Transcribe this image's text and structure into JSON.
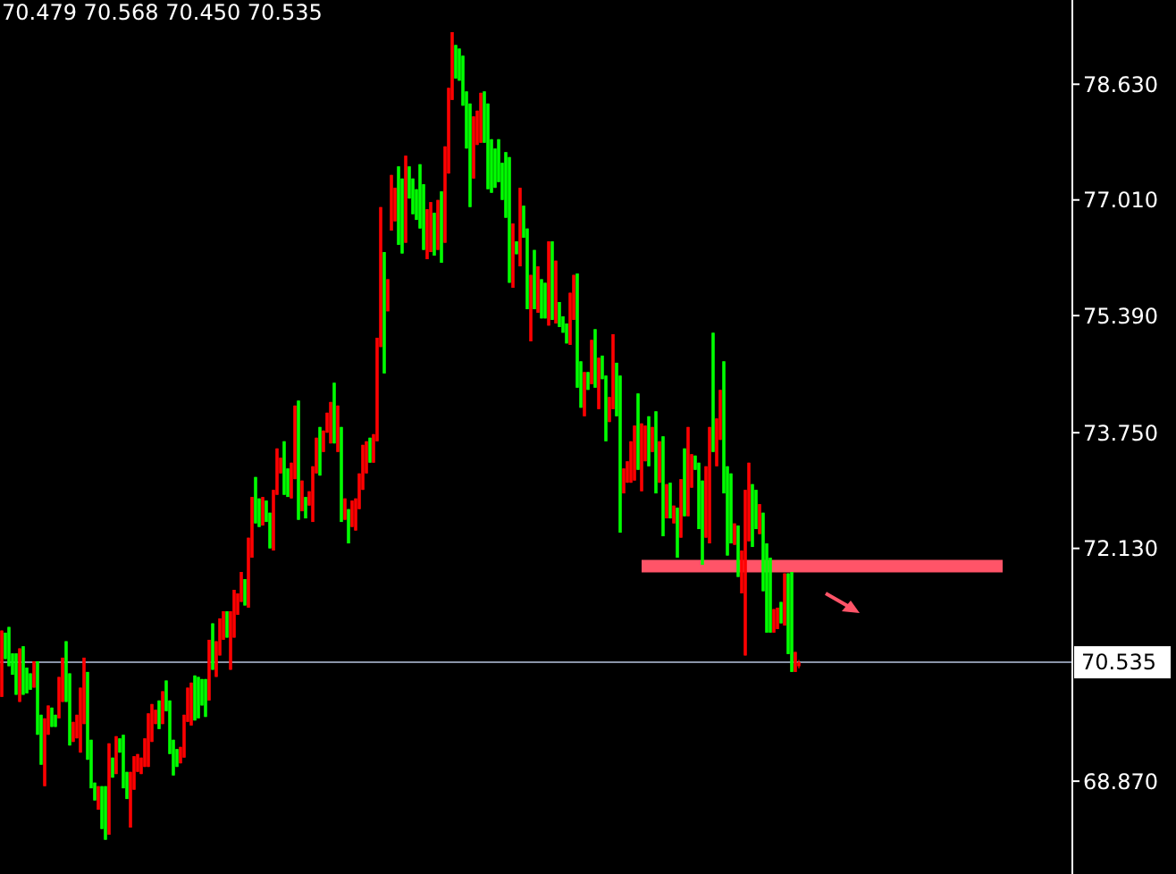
{
  "chart_data": {
    "type": "candlestick",
    "title": "70.479 70.568 70.450 70.535",
    "categories": [
      null,
      null,
      null,
      null,
      null,
      null,
      null,
      null,
      null,
      null,
      null,
      null,
      null,
      null,
      null,
      null,
      null,
      null,
      null,
      null,
      null,
      null,
      null,
      null,
      null,
      null,
      null,
      null,
      null,
      null,
      null,
      null,
      null,
      null,
      null,
      null,
      null,
      null,
      null,
      null,
      null,
      null,
      null,
      null,
      null,
      null,
      null,
      null,
      null,
      null,
      null,
      null,
      null,
      null,
      null,
      null,
      null,
      null,
      null,
      null,
      null,
      null,
      null,
      null,
      null,
      null,
      null,
      null,
      null,
      null,
      null,
      null,
      null,
      null,
      null,
      null,
      null,
      null,
      null,
      null,
      null,
      null,
      null,
      null,
      null,
      null,
      null,
      null,
      null,
      null,
      null,
      null,
      null,
      null,
      null,
      null,
      null,
      null,
      null,
      null,
      null,
      null,
      null,
      null,
      null,
      null,
      null,
      null,
      null,
      null,
      null,
      null,
      null,
      null,
      null,
      null,
      null,
      null,
      null,
      null,
      null,
      null,
      null,
      null,
      null,
      null,
      null,
      null,
      null,
      null,
      null,
      null,
      null,
      null,
      null,
      null,
      null,
      null,
      null,
      null,
      null,
      null,
      null,
      null,
      null,
      null,
      null,
      null,
      null,
      null,
      null,
      null,
      null,
      null,
      null,
      null,
      null,
      null,
      null,
      null,
      null,
      null,
      null,
      null,
      null,
      null,
      null,
      null,
      null,
      null,
      null,
      null,
      null,
      null,
      null,
      null,
      null,
      null,
      null,
      null,
      null,
      null,
      null,
      null,
      null,
      null,
      null,
      null,
      null,
      null,
      null,
      null,
      null,
      null,
      null,
      null,
      null,
      null,
      null,
      null,
      null,
      null,
      null,
      null,
      null,
      null,
      null,
      null,
      null,
      null,
      null,
      null,
      null,
      null,
      null,
      null,
      null,
      null,
      null,
      null,
      null,
      null,
      null,
      null,
      null,
      null,
      null,
      null,
      null,
      null,
      null,
      null,
      null,
      null,
      null,
      null,
      null,
      null,
      null,
      null,
      null,
      null,
      null,
      null,
      null,
      null,
      null,
      null,
      null,
      null,
      null,
      null,
      null,
      null,
      null,
      null,
      null,
      null,
      null,
      null,
      null,
      null,
      null,
      null,
      null,
      null,
      null,
      null,
      null,
      null,
      null,
      null,
      null,
      null,
      null,
      null,
      null,
      null,
      null,
      null,
      null,
      null,
      null,
      null,
      null,
      null,
      null,
      null,
      null,
      null,
      null,
      null,
      null,
      null,
      null,
      null,
      null,
      null,
      null,
      null
    ],
    "ohlc": [
      [
        70.05,
        70.98,
        70.05,
        70.98
      ],
      [
        70.95,
        70.95,
        70.58,
        70.58
      ],
      [
        71.03,
        71.03,
        70.48,
        70.48
      ],
      [
        70.66,
        70.66,
        70.36,
        70.36
      ],
      [
        70.66,
        70.66,
        70.08,
        70.08
      ],
      [
        69.98,
        70.73,
        69.98,
        70.73
      ],
      [
        70.76,
        70.76,
        70.08,
        70.08
      ],
      [
        70.46,
        70.46,
        70.1,
        70.1
      ],
      [
        70.38,
        70.38,
        70.15,
        70.15
      ],
      [
        70.18,
        70.55,
        70.18,
        70.55
      ],
      [
        70.55,
        70.55,
        69.52,
        69.52
      ],
      [
        69.8,
        69.8,
        69.1,
        69.1
      ],
      [
        68.8,
        69.75,
        68.8,
        69.75
      ],
      [
        69.52,
        69.93,
        69.52,
        69.93
      ],
      [
        69.9,
        69.9,
        69.63,
        69.63
      ],
      [
        69.8,
        69.8,
        69.63,
        69.63
      ],
      [
        69.75,
        70.33,
        69.75,
        70.33
      ],
      [
        69.98,
        70.6,
        69.98,
        70.6
      ],
      [
        70.83,
        70.83,
        69.98,
        69.98
      ],
      [
        70.38,
        70.38,
        69.37,
        69.37
      ],
      [
        69.42,
        69.7,
        69.42,
        69.7
      ],
      [
        69.47,
        69.8,
        69.47,
        69.8
      ],
      [
        69.27,
        70.18,
        69.27,
        70.18
      ],
      [
        69.67,
        70.6,
        69.67,
        70.6
      ],
      [
        70.4,
        70.4,
        69.17,
        69.17
      ],
      [
        69.45,
        69.45,
        68.77,
        68.77
      ],
      [
        68.85,
        68.85,
        68.6,
        68.6
      ],
      [
        68.47,
        68.8,
        68.47,
        68.8
      ],
      [
        68.8,
        68.8,
        68.2,
        68.2
      ],
      [
        68.8,
        68.8,
        68.05,
        68.05
      ],
      [
        68.12,
        69.4,
        68.12,
        69.4
      ],
      [
        69.2,
        69.2,
        68.92,
        68.92
      ],
      [
        68.97,
        69.5,
        68.97,
        69.5
      ],
      [
        69.47,
        69.47,
        69.27,
        69.27
      ],
      [
        69.52,
        69.52,
        68.77,
        68.77
      ],
      [
        69.0,
        69.0,
        68.62,
        68.62
      ],
      [
        68.22,
        69.0,
        68.22,
        69.0
      ],
      [
        68.75,
        69.22,
        68.75,
        69.22
      ],
      [
        69.0,
        69.25,
        69.0,
        69.25
      ],
      [
        68.97,
        69.2,
        68.97,
        69.2
      ],
      [
        69.07,
        69.47,
        69.07,
        69.47
      ],
      [
        69.07,
        69.82,
        69.07,
        69.82
      ],
      [
        69.42,
        69.95,
        69.42,
        69.95
      ],
      [
        69.67,
        69.87,
        69.67,
        69.87
      ],
      [
        70.0,
        70.0,
        69.6,
        69.6
      ],
      [
        69.67,
        70.13,
        69.67,
        70.13
      ],
      [
        70.28,
        70.28,
        69.85,
        69.85
      ],
      [
        70.0,
        70.0,
        69.25,
        69.25
      ],
      [
        69.45,
        69.45,
        68.95,
        68.95
      ],
      [
        69.32,
        69.32,
        69.07,
        69.07
      ],
      [
        69.12,
        69.35,
        69.12,
        69.35
      ],
      [
        69.2,
        69.8,
        69.2,
        69.8
      ],
      [
        69.7,
        70.18,
        69.7,
        70.18
      ],
      [
        69.65,
        70.25,
        69.65,
        70.25
      ],
      [
        70.35,
        70.35,
        69.72,
        69.72
      ],
      [
        70.33,
        70.33,
        69.75,
        69.75
      ],
      [
        70.3,
        70.3,
        69.93,
        69.93
      ],
      [
        70.3,
        70.3,
        69.77,
        69.77
      ],
      [
        70.0,
        70.85,
        70.0,
        70.85
      ],
      [
        71.08,
        71.08,
        70.43,
        70.43
      ],
      [
        70.33,
        70.83,
        70.33,
        70.83
      ],
      [
        70.63,
        71.15,
        70.63,
        71.15
      ],
      [
        70.85,
        71.25,
        70.85,
        71.25
      ],
      [
        71.25,
        71.25,
        70.88,
        70.88
      ],
      [
        70.43,
        71.25,
        70.43,
        71.25
      ],
      [
        70.88,
        71.55,
        70.88,
        71.55
      ],
      [
        71.2,
        71.5,
        71.2,
        71.5
      ],
      [
        71.38,
        71.8,
        71.38,
        71.8
      ],
      [
        71.7,
        71.7,
        71.33,
        71.33
      ],
      [
        71.3,
        72.28,
        71.3,
        72.28
      ],
      [
        72.0,
        72.85,
        72.0,
        72.85
      ],
      [
        73.13,
        73.13,
        72.48,
        72.48
      ],
      [
        72.83,
        72.83,
        72.43,
        72.43
      ],
      [
        72.45,
        72.85,
        72.45,
        72.85
      ],
      [
        72.8,
        72.8,
        72.5,
        72.5
      ],
      [
        72.63,
        72.63,
        72.13,
        72.13
      ],
      [
        72.1,
        72.95,
        72.1,
        72.95
      ],
      [
        72.88,
        73.53,
        72.88,
        73.53
      ],
      [
        73.18,
        73.4,
        73.18,
        73.4
      ],
      [
        73.63,
        73.63,
        72.88,
        72.88
      ],
      [
        73.25,
        73.25,
        72.85,
        72.85
      ],
      [
        72.83,
        73.33,
        72.83,
        73.33
      ],
      [
        73.1,
        74.13,
        73.1,
        74.13
      ],
      [
        74.2,
        74.2,
        72.53,
        72.53
      ],
      [
        72.65,
        73.08,
        72.65,
        73.08
      ],
      [
        72.85,
        72.85,
        72.55,
        72.55
      ],
      [
        72.73,
        72.93,
        72.73,
        72.93
      ],
      [
        72.5,
        73.28,
        72.5,
        73.28
      ],
      [
        73.18,
        73.68,
        73.18,
        73.68
      ],
      [
        73.83,
        73.83,
        73.15,
        73.15
      ],
      [
        73.48,
        73.78,
        73.48,
        73.78
      ],
      [
        73.75,
        74.03,
        73.75,
        74.03
      ],
      [
        73.6,
        74.18,
        73.6,
        74.18
      ],
      [
        74.45,
        74.45,
        73.6,
        73.6
      ],
      [
        73.48,
        74.13,
        73.48,
        74.13
      ],
      [
        73.83,
        73.83,
        72.5,
        72.5
      ],
      [
        72.53,
        72.83,
        72.53,
        72.83
      ],
      [
        72.68,
        72.68,
        72.2,
        72.2
      ],
      [
        72.43,
        72.8,
        72.43,
        72.8
      ],
      [
        72.38,
        72.83,
        72.38,
        72.83
      ],
      [
        72.68,
        73.18,
        72.68,
        73.18
      ],
      [
        72.95,
        73.58,
        72.95,
        73.58
      ],
      [
        73.18,
        73.63,
        73.18,
        73.63
      ],
      [
        73.68,
        73.68,
        73.33,
        73.33
      ],
      [
        73.33,
        73.73,
        73.33,
        73.73
      ],
      [
        73.63,
        75.08,
        73.63,
        75.08
      ],
      [
        74.95,
        76.91,
        74.95,
        76.91
      ],
      [
        76.28,
        76.28,
        74.58,
        74.58
      ],
      [
        75.45,
        75.9,
        75.45,
        75.9
      ],
      [
        76.58,
        77.36,
        76.58,
        77.36
      ],
      [
        76.71,
        77.18,
        76.71,
        77.18
      ],
      [
        77.48,
        77.48,
        76.38,
        76.38
      ],
      [
        77.31,
        77.31,
        76.26,
        76.26
      ],
      [
        76.41,
        77.63,
        76.41,
        77.63
      ],
      [
        77.48,
        77.48,
        77.03,
        77.03
      ],
      [
        77.31,
        77.31,
        76.81,
        76.81
      ],
      [
        77.16,
        77.16,
        76.73,
        76.73
      ],
      [
        77.51,
        77.51,
        76.61,
        76.61
      ],
      [
        77.23,
        77.23,
        76.31,
        76.31
      ],
      [
        76.18,
        76.88,
        76.18,
        76.88
      ],
      [
        76.28,
        76.98,
        76.28,
        76.98
      ],
      [
        76.83,
        76.83,
        76.23,
        76.23
      ],
      [
        76.31,
        77.01,
        76.31,
        77.01
      ],
      [
        77.13,
        77.13,
        76.13,
        76.13
      ],
      [
        76.41,
        77.76,
        76.41,
        77.76
      ],
      [
        77.38,
        78.58,
        77.38,
        78.58
      ],
      [
        78.41,
        79.36,
        78.41,
        79.36
      ],
      [
        79.18,
        79.18,
        78.71,
        78.71
      ],
      [
        79.13,
        79.13,
        78.68,
        78.68
      ],
      [
        79.03,
        79.03,
        78.33,
        78.33
      ],
      [
        78.53,
        78.53,
        77.73,
        77.73
      ],
      [
        78.36,
        78.36,
        76.91,
        76.91
      ],
      [
        77.31,
        78.18,
        77.31,
        78.18
      ],
      [
        77.78,
        78.26,
        77.78,
        78.26
      ],
      [
        77.81,
        78.51,
        77.81,
        78.51
      ],
      [
        78.53,
        78.53,
        77.81,
        77.81
      ],
      [
        78.36,
        78.36,
        77.16,
        77.16
      ],
      [
        77.86,
        77.86,
        77.11,
        77.11
      ],
      [
        77.73,
        77.73,
        77.18,
        77.18
      ],
      [
        77.86,
        77.86,
        77.26,
        77.26
      ],
      [
        77.53,
        77.53,
        77.01,
        77.01
      ],
      [
        77.68,
        77.68,
        76.76,
        76.76
      ],
      [
        77.61,
        77.61,
        75.85,
        75.85
      ],
      [
        75.78,
        76.68,
        75.78,
        76.68
      ],
      [
        76.43,
        76.43,
        76.25,
        76.25
      ],
      [
        76.08,
        77.18,
        76.08,
        77.18
      ],
      [
        76.93,
        76.93,
        76.48,
        76.48
      ],
      [
        76.61,
        76.61,
        75.48,
        75.48
      ],
      [
        75.03,
        75.96,
        75.03,
        75.96
      ],
      [
        76.31,
        76.31,
        75.48,
        75.48
      ],
      [
        75.43,
        76.08,
        75.43,
        76.08
      ],
      [
        75.9,
        75.9,
        75.35,
        75.35
      ],
      [
        75.85,
        75.85,
        75.35,
        75.35
      ],
      [
        75.25,
        76.43,
        75.25,
        76.43
      ],
      [
        76.43,
        76.43,
        75.33,
        75.33
      ],
      [
        75.28,
        76.16,
        75.28,
        76.16
      ],
      [
        75.58,
        75.58,
        75.23,
        75.23
      ],
      [
        75.38,
        75.38,
        75.15,
        75.15
      ],
      [
        75.28,
        75.28,
        75.0,
        75.0
      ],
      [
        74.98,
        75.71,
        74.98,
        75.71
      ],
      [
        75.33,
        75.96,
        75.33,
        75.96
      ],
      [
        75.98,
        75.98,
        74.38,
        74.38
      ],
      [
        74.75,
        74.75,
        74.1,
        74.1
      ],
      [
        73.98,
        74.6,
        73.98,
        74.6
      ],
      [
        74.6,
        74.6,
        74.35,
        74.35
      ],
      [
        74.43,
        75.05,
        74.43,
        75.05
      ],
      [
        75.2,
        75.2,
        74.38,
        74.38
      ],
      [
        74.08,
        74.8,
        74.08,
        74.8
      ],
      [
        74.83,
        74.83,
        74.5,
        74.5
      ],
      [
        74.55,
        74.55,
        73.63,
        73.63
      ],
      [
        73.9,
        74.25,
        73.9,
        74.25
      ],
      [
        74.08,
        75.13,
        74.08,
        75.13
      ],
      [
        74.73,
        74.73,
        73.98,
        73.98
      ],
      [
        74.55,
        74.55,
        72.35,
        72.35
      ],
      [
        72.9,
        73.25,
        72.9,
        73.25
      ],
      [
        73.05,
        73.35,
        73.05,
        73.35
      ],
      [
        73.05,
        73.63,
        73.05,
        73.63
      ],
      [
        73.08,
        73.85,
        73.08,
        73.85
      ],
      [
        74.3,
        74.3,
        73.23,
        73.23
      ],
      [
        72.93,
        73.88,
        72.93,
        73.88
      ],
      [
        73.35,
        73.85,
        73.35,
        73.85
      ],
      [
        73.98,
        73.98,
        73.28,
        73.28
      ],
      [
        73.48,
        73.83,
        73.48,
        73.83
      ],
      [
        74.05,
        74.05,
        72.9,
        72.9
      ],
      [
        73.05,
        73.63,
        73.05,
        73.63
      ],
      [
        73.7,
        73.7,
        72.3,
        72.3
      ],
      [
        72.55,
        73.03,
        72.55,
        73.03
      ],
      [
        73.05,
        73.05,
        72.55,
        72.55
      ],
      [
        72.48,
        72.73,
        72.48,
        72.73
      ],
      [
        72.7,
        72.7,
        72.0,
        72.0
      ],
      [
        72.28,
        73.1,
        72.28,
        73.1
      ],
      [
        73.53,
        73.53,
        72.58,
        72.58
      ],
      [
        72.58,
        73.83,
        72.58,
        73.83
      ],
      [
        72.98,
        73.45,
        72.98,
        73.45
      ],
      [
        73.43,
        73.43,
        73.23,
        73.23
      ],
      [
        73.33,
        73.33,
        72.4,
        72.4
      ],
      [
        73.08,
        73.08,
        71.9,
        71.9
      ],
      [
        72.28,
        73.28,
        72.28,
        73.28
      ],
      [
        72.2,
        73.83,
        72.2,
        73.83
      ],
      [
        75.15,
        75.15,
        73.48,
        73.48
      ],
      [
        73.28,
        73.95,
        73.28,
        73.95
      ],
      [
        73.65,
        74.35,
        73.65,
        74.35
      ],
      [
        74.75,
        74.75,
        72.9,
        72.9
      ],
      [
        73.28,
        73.28,
        72.03,
        72.03
      ],
      [
        73.18,
        73.18,
        72.2,
        72.2
      ],
      [
        72.18,
        72.48,
        72.18,
        72.48
      ],
      [
        72.45,
        72.45,
        71.73,
        71.73
      ],
      [
        71.5,
        72.1,
        71.5,
        72.1
      ],
      [
        70.63,
        72.95,
        70.63,
        72.95
      ],
      [
        72.23,
        73.33,
        72.23,
        73.33
      ],
      [
        73.03,
        73.03,
        72.15,
        72.15
      ],
      [
        72.95,
        72.95,
        72.4,
        72.4
      ],
      [
        72.33,
        72.75,
        72.33,
        72.75
      ],
      [
        72.63,
        72.63,
        71.53,
        71.53
      ],
      [
        72.2,
        72.2,
        70.95,
        70.95
      ],
      [
        72.0,
        72.0,
        70.95,
        70.95
      ],
      [
        70.95,
        71.28,
        70.95,
        71.28
      ],
      [
        71.0,
        71.3,
        71.0,
        71.3
      ],
      [
        71.38,
        71.38,
        71.08,
        71.08
      ],
      [
        71.05,
        71.78,
        71.05,
        71.78
      ],
      [
        71.78,
        71.78,
        70.65,
        70.65
      ],
      [
        71.8,
        71.8,
        70.4,
        70.4
      ],
      [
        70.4,
        70.68,
        70.4,
        70.68
      ],
      [
        70.479,
        70.568,
        70.45,
        70.535
      ],
      null,
      null,
      null,
      null,
      null,
      null,
      null,
      null,
      null,
      null,
      null,
      null,
      null,
      null,
      null,
      null,
      null,
      null,
      null,
      null,
      null,
      null,
      null,
      null,
      null,
      null,
      null,
      null,
      null,
      null,
      null,
      null,
      null,
      null,
      null,
      null,
      null,
      null,
      null,
      null,
      null,
      null,
      null,
      null,
      null,
      null,
      null,
      null,
      null,
      null,
      null,
      null,
      null,
      null,
      null,
      null,
      null,
      null,
      null,
      null,
      null,
      null,
      null,
      null,
      null,
      null,
      null,
      null,
      null,
      null,
      null,
      null,
      null,
      null,
      null,
      null
    ],
    "colors": [
      "#ff0000",
      "#00ff00",
      "#00ff00",
      "#00ff00",
      "#00ff00",
      "#ff0000",
      "#00ff00",
      "#00ff00",
      "#00ff00",
      "#ff0000",
      "#00ff00",
      "#00ff00",
      "#ff0000",
      "#ff0000",
      "#00ff00",
      "#00ff00",
      "#ff0000",
      "#ff0000",
      "#00ff00",
      "#00ff00",
      "#ff0000",
      "#ff0000",
      "#ff0000",
      "#ff0000",
      "#00ff00",
      "#00ff00",
      "#00ff00",
      "#ff0000",
      "#00ff00",
      "#00ff00",
      "#ff0000",
      "#00ff00",
      "#ff0000",
      "#00ff00",
      "#00ff00",
      "#00ff00",
      "#ff0000",
      "#ff0000",
      "#ff0000",
      "#ff0000",
      "#ff0000",
      "#ff0000",
      "#ff0000",
      "#ff0000",
      "#00ff00",
      "#ff0000",
      "#00ff00",
      "#00ff00",
      "#00ff00",
      "#00ff00",
      "#ff0000",
      "#ff0000",
      "#ff0000",
      "#ff0000",
      "#00ff00",
      "#00ff00",
      "#00ff00",
      "#00ff00",
      "#ff0000",
      "#00ff00",
      "#ff0000",
      "#ff0000",
      "#ff0000",
      "#00ff00",
      "#ff0000",
      "#ff0000",
      "#ff0000",
      "#ff0000",
      "#00ff00",
      "#ff0000",
      "#ff0000",
      "#00ff00",
      "#00ff00",
      "#ff0000",
      "#00ff00",
      "#00ff00",
      "#ff0000",
      "#ff0000",
      "#ff0000",
      "#00ff00",
      "#00ff00",
      "#ff0000",
      "#ff0000",
      "#00ff00",
      "#ff0000",
      "#00ff00",
      "#ff0000",
      "#ff0000",
      "#ff0000",
      "#00ff00",
      "#ff0000",
      "#ff0000",
      "#ff0000",
      "#00ff00",
      "#ff0000",
      "#00ff00",
      "#ff0000",
      "#00ff00",
      "#ff0000",
      "#ff0000",
      "#ff0000",
      "#ff0000",
      "#ff0000",
      "#00ff00",
      "#ff0000",
      "#ff0000",
      "#ff0000",
      "#00ff00",
      "#ff0000",
      "#ff0000",
      "#ff0000",
      "#00ff00",
      "#00ff00",
      "#ff0000",
      "#00ff00",
      "#00ff00",
      "#00ff00",
      "#00ff00",
      "#00ff00",
      "#ff0000",
      "#ff0000",
      "#00ff00",
      "#ff0000",
      "#00ff00",
      "#ff0000",
      "#ff0000",
      "#ff0000",
      "#00ff00",
      "#00ff00",
      "#00ff00",
      "#00ff00",
      "#00ff00",
      "#ff0000",
      "#ff0000",
      "#ff0000",
      "#00ff00",
      "#00ff00",
      "#00ff00",
      "#00ff00",
      "#00ff00",
      "#00ff00",
      "#00ff00",
      "#00ff00",
      "#ff0000",
      "#00ff00",
      "#ff0000",
      "#00ff00",
      "#00ff00",
      "#ff0000",
      "#00ff00",
      "#ff0000",
      "#00ff00",
      "#00ff00",
      "#ff0000",
      "#00ff00",
      "#ff0000",
      "#00ff00",
      "#00ff00",
      "#00ff00",
      "#ff0000",
      "#ff0000",
      "#00ff00",
      "#00ff00",
      "#ff0000",
      "#00ff00",
      "#ff0000",
      "#00ff00",
      "#ff0000",
      "#00ff00",
      "#00ff00",
      "#ff0000",
      "#ff0000",
      "#00ff00",
      "#00ff00",
      "#ff0000",
      "#ff0000",
      "#ff0000",
      "#ff0000",
      "#00ff00",
      "#ff0000",
      "#ff0000",
      "#00ff00",
      "#ff0000",
      "#00ff00",
      "#ff0000",
      "#00ff00",
      "#ff0000",
      "#00ff00",
      "#ff0000",
      "#00ff00",
      "#ff0000",
      "#00ff00",
      "#ff0000",
      "#ff0000",
      "#00ff00",
      "#00ff00",
      "#00ff00",
      "#ff0000",
      "#ff0000",
      "#00ff00",
      "#ff0000",
      "#ff0000",
      "#00ff00",
      "#00ff00",
      "#00ff00",
      "#ff0000",
      "#00ff00",
      "#ff0000",
      "#ff0000",
      "#ff0000",
      "#00ff00",
      "#00ff00",
      "#ff0000",
      "#00ff00",
      "#00ff00",
      "#00ff00",
      "#ff0000",
      "#ff0000",
      "#00ff00",
      "#ff0000",
      "#00ff00",
      "#00ff00",
      "#ff0000",
      "#ff0000",
      null,
      null,
      null,
      null,
      null,
      null,
      null,
      null,
      null,
      null,
      null,
      null,
      null,
      null,
      null,
      null,
      null,
      null,
      null,
      null,
      null,
      null,
      null,
      null,
      null,
      null,
      null,
      null,
      null,
      null,
      null,
      null,
      null,
      null,
      null,
      null,
      null,
      null,
      null,
      null,
      null,
      null,
      null,
      null,
      null,
      null,
      null,
      null,
      null,
      null,
      null,
      null,
      null,
      null,
      null,
      null,
      null,
      null,
      null,
      null,
      null,
      null,
      null,
      null,
      null,
      null,
      null,
      null,
      null,
      null,
      null,
      null,
      null,
      null,
      null,
      null
    ],
    "series": [
      {
        "type": "line",
        "color": "#ff5468",
        "values": [
          null,
          null,
          null,
          null,
          null,
          null,
          null,
          null,
          null,
          null,
          null,
          null,
          null,
          null,
          null,
          null,
          null,
          null,
          null,
          null,
          null,
          null,
          null,
          null,
          null,
          null,
          null,
          null,
          null,
          null,
          null,
          null,
          null,
          null,
          null,
          null,
          null,
          null,
          null,
          null,
          null,
          null,
          null,
          null,
          null,
          null,
          null,
          null,
          null,
          null,
          null,
          null,
          null,
          null,
          null,
          null,
          null,
          null,
          null,
          null,
          null,
          null,
          null,
          null,
          null,
          null,
          null,
          null,
          null,
          null,
          null,
          null,
          null,
          null,
          null,
          null,
          null,
          null,
          null,
          null,
          null,
          null,
          null,
          null,
          null,
          null,
          null,
          null,
          null,
          null,
          null,
          null,
          null,
          null,
          null,
          null,
          null,
          null,
          null,
          null,
          null,
          null,
          null,
          null,
          null,
          null,
          null,
          null,
          null,
          null,
          null,
          null,
          null,
          null,
          null,
          null,
          null,
          null,
          null,
          null,
          null,
          null,
          null,
          null,
          null,
          null,
          null,
          null,
          null,
          null,
          null,
          null,
          null,
          null,
          null,
          null,
          null,
          null,
          null,
          null,
          null,
          null,
          null,
          null,
          null,
          null,
          null,
          null,
          null,
          null,
          null,
          null,
          null,
          null,
          null,
          null,
          null,
          null,
          null,
          null,
          null,
          null,
          null,
          null,
          null,
          null,
          null,
          null,
          null,
          null,
          null,
          null,
          null,
          null,
          null,
          null,
          null,
          null,
          null,
          71.88,
          71.88,
          71.88,
          71.88,
          71.88,
          71.88,
          71.88,
          71.88,
          71.88,
          71.88,
          71.88,
          71.88,
          71.88,
          71.88,
          71.88,
          71.88,
          71.88,
          71.88,
          71.88,
          71.88,
          71.88,
          71.88,
          71.88,
          71.88,
          71.88,
          71.88,
          71.88,
          71.88,
          71.88,
          71.88,
          71.88,
          71.88,
          71.88,
          71.88,
          71.88,
          71.88,
          71.88,
          71.88,
          71.88,
          71.88,
          71.88,
          71.88,
          71.88,
          71.88,
          71.88,
          71.88,
          71.88,
          71.88,
          71.88,
          71.88,
          71.88,
          71.88,
          71.88,
          71.88,
          71.88,
          71.88,
          71.88,
          71.88,
          71.88,
          71.88,
          71.88,
          71.88,
          71.88,
          71.88,
          71.88,
          71.88,
          71.88,
          71.88,
          71.88,
          71.88,
          71.88,
          71.88,
          71.88,
          71.88,
          71.88,
          71.88,
          71.88,
          71.88,
          71.88,
          71.88,
          71.88,
          71.88,
          71.88,
          71.88,
          71.88,
          71.88,
          71.88,
          71.88,
          71.88,
          71.88,
          71.88,
          71.88,
          71.88,
          71.88,
          71.88,
          71.88,
          71.88,
          71.88,
          71.88,
          71.88,
          71.88,
          71.88,
          null,
          null,
          null,
          null,
          null,
          null,
          null,
          null,
          null,
          null,
          null,
          null,
          null,
          null,
          null,
          null,
          null,
          null,
          null
        ]
      }
    ],
    "ref_lines": [
      {
        "axis": "y",
        "value": 70.535,
        "label": "70.535",
        "color": "#8a94a8"
      }
    ],
    "ylim": [
      67.57,
      79.81
    ],
    "yticks": [
      {
        "value": 68.87,
        "label": "68.870"
      },
      {
        "value": 72.13,
        "label": "72.130"
      },
      {
        "value": 73.75,
        "label": "73.750"
      },
      {
        "value": 75.39,
        "label": "75.390"
      },
      {
        "value": 77.01,
        "label": "77.010"
      },
      {
        "value": 78.63,
        "label": "78.630"
      }
    ],
    "tick_labels": "y"
  }
}
